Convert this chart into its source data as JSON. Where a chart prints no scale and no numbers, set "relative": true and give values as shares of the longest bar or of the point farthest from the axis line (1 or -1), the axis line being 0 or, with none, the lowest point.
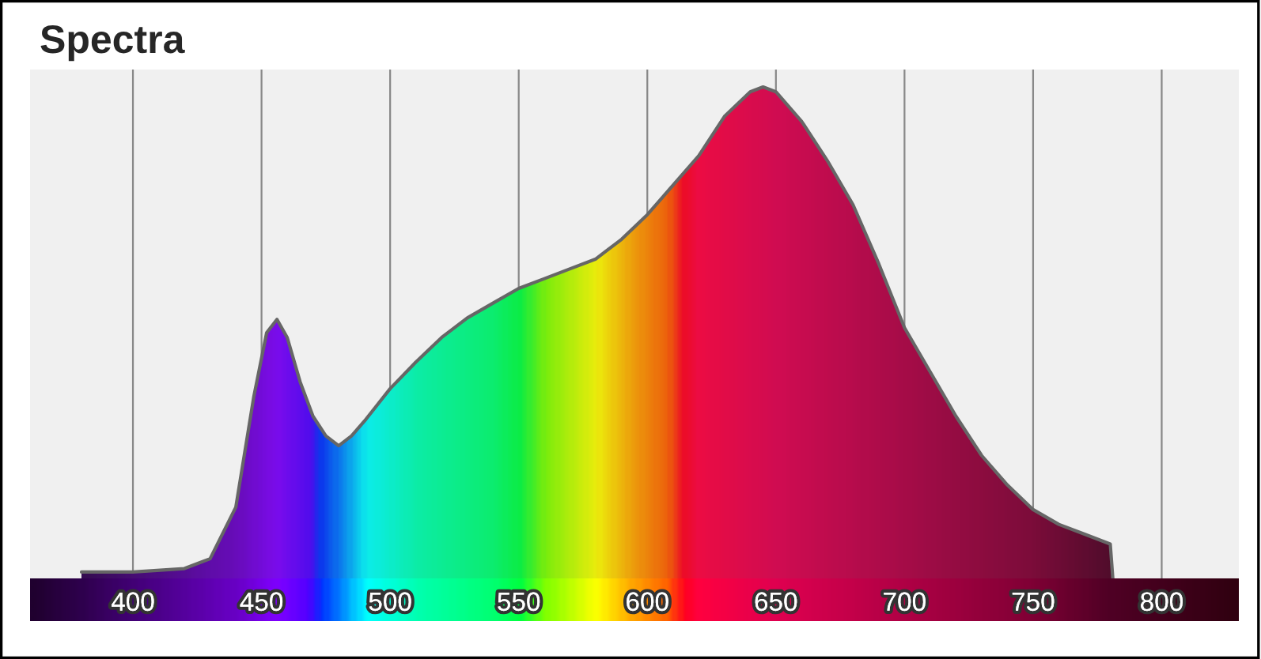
{
  "chart_data": {
    "type": "area",
    "title": "Spectra",
    "relative": true,
    "x": [
      380,
      400,
      420,
      430,
      440,
      447,
      452,
      456,
      460,
      465,
      470,
      475,
      480,
      485,
      490,
      500,
      510,
      520,
      530,
      540,
      550,
      560,
      570,
      580,
      590,
      600,
      610,
      620,
      630,
      640,
      645,
      650,
      660,
      670,
      680,
      690,
      700,
      710,
      720,
      730,
      740,
      750,
      760,
      770,
      780,
      781
    ],
    "series": [
      {
        "color": "#666666",
        "values": [
          0.013,
          0.013,
          0.02,
          0.04,
          0.145,
          0.37,
          0.5,
          0.527,
          0.49,
          0.4,
          0.33,
          0.29,
          0.27,
          0.29,
          0.32,
          0.386,
          0.44,
          0.49,
          0.53,
          0.56,
          0.59,
          0.61,
          0.63,
          0.65,
          0.69,
          0.74,
          0.8,
          0.86,
          0.94,
          0.99,
          1,
          0.99,
          0.93,
          0.85,
          0.76,
          0.64,
          0.51,
          0.42,
          0.33,
          0.25,
          0.19,
          0.14,
          0.11,
          0.09,
          0.07,
          0
        ]
      }
    ],
    "xlim": [
      360,
      830
    ],
    "xticks": [
      400,
      450,
      500,
      550,
      600,
      650,
      700,
      750,
      800
    ],
    "grid": "x",
    "legend": false,
    "tick_labels": "x"
  }
}
